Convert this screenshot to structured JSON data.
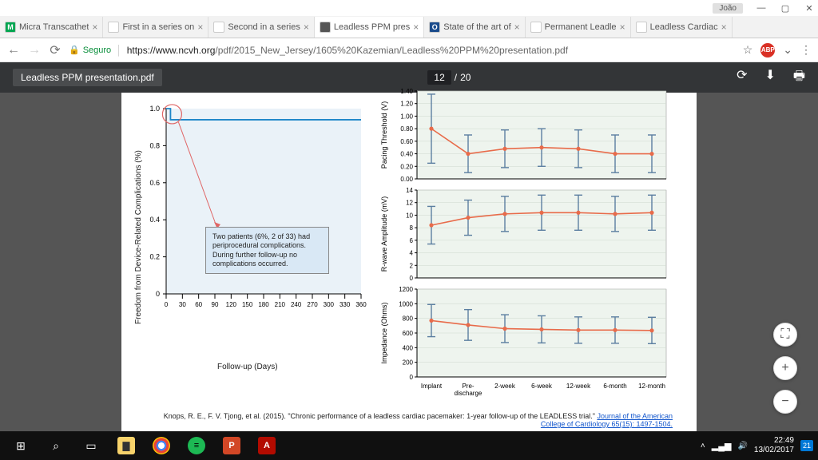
{
  "titlebar": {
    "user": "João"
  },
  "tabs": [
    {
      "label": "Micra Transcathet",
      "fav_bg": "#00a651",
      "fav_txt": "M"
    },
    {
      "label": "First in a series on",
      "fav_bg": "#fff",
      "fav_txt": ""
    },
    {
      "label": "Second in a series",
      "fav_bg": "#fff",
      "fav_txt": ""
    },
    {
      "label": "Leadless PPM pres",
      "fav_bg": "#555",
      "fav_txt": "",
      "active": true
    },
    {
      "label": "State of the art of",
      "fav_bg": "#1a4b8c",
      "fav_txt": "O"
    },
    {
      "label": "Permanent Leadle",
      "fav_bg": "#fff",
      "fav_txt": ""
    },
    {
      "label": "Leadless Cardiac ",
      "fav_bg": "#fff",
      "fav_txt": ""
    }
  ],
  "address": {
    "secure": "Seguro",
    "domain": "https://www.ncvh.org",
    "path": "/pdf/2015_New_Jersey/1605%20Kazemian/Leadless%20PPM%20presentation.pdf"
  },
  "pdf": {
    "name": "Leadless PPM presentation.pdf",
    "page": "12",
    "total": "20"
  },
  "left_chart": {
    "ylabel": "Freedom from Device-Related Complications (%)",
    "xlabel": "Follow-up (Days)",
    "xticks": [
      "0",
      "30",
      "60",
      "90",
      "120",
      "150",
      "180",
      "210",
      "240",
      "270",
      "300",
      "330",
      "360"
    ],
    "yticks": [
      "0",
      "0.2",
      "0.4",
      "0.6",
      "0.8",
      "1.0"
    ],
    "line_color": "#1d86c8",
    "bg": "#eaf2f8",
    "step_x": 8,
    "step_drop_to": 0.94,
    "circle_color": "#e06666",
    "annotation": "Two patients (6%, 2 of 33) had periprocedural complications. During further follow-up no complications occurred."
  },
  "right_charts": {
    "xticks": [
      "Implant",
      "Pre-\ndischarge",
      "2-week",
      "6-week",
      "12-week",
      "6-month",
      "12-month"
    ],
    "bg": "#eef4ee",
    "grid": "#cfd9cf",
    "line_color": "#e86b4a",
    "bar_color": "#5b7ea0",
    "panels": [
      {
        "ylabel": "Pacing Threshold (V)",
        "ymax": 1.4,
        "ystep": 0.2,
        "vals": [
          0.8,
          0.4,
          0.48,
          0.5,
          0.48,
          0.4,
          0.4
        ],
        "err": [
          0.55,
          0.3,
          0.3,
          0.3,
          0.3,
          0.3,
          0.3
        ]
      },
      {
        "ylabel": "R-wave Amplitude (mV)",
        "ymax": 14,
        "ystep": 2,
        "vals": [
          8.4,
          9.6,
          10.2,
          10.4,
          10.4,
          10.2,
          10.4
        ],
        "err": [
          3.0,
          2.8,
          2.8,
          2.8,
          2.8,
          2.8,
          2.8
        ]
      },
      {
        "ylabel": "Impedance (Ohms)",
        "ymax": 1200,
        "ystep": 200,
        "vals": [
          770,
          710,
          660,
          650,
          640,
          640,
          635
        ],
        "err": [
          220,
          210,
          190,
          185,
          180,
          180,
          180
        ]
      }
    ]
  },
  "citation": {
    "plain": "Knops, R. E., F. V. Tjong, et al. (2015). \"Chronic performance of a leadless cardiac pacemaker: 1-year follow-up of the LEADLESS trial.\" ",
    "link": "Journal of the American College of Cardiology 65(15): 1497-1504."
  },
  "clock": {
    "time": "22:49",
    "date": "13/02/2017"
  }
}
